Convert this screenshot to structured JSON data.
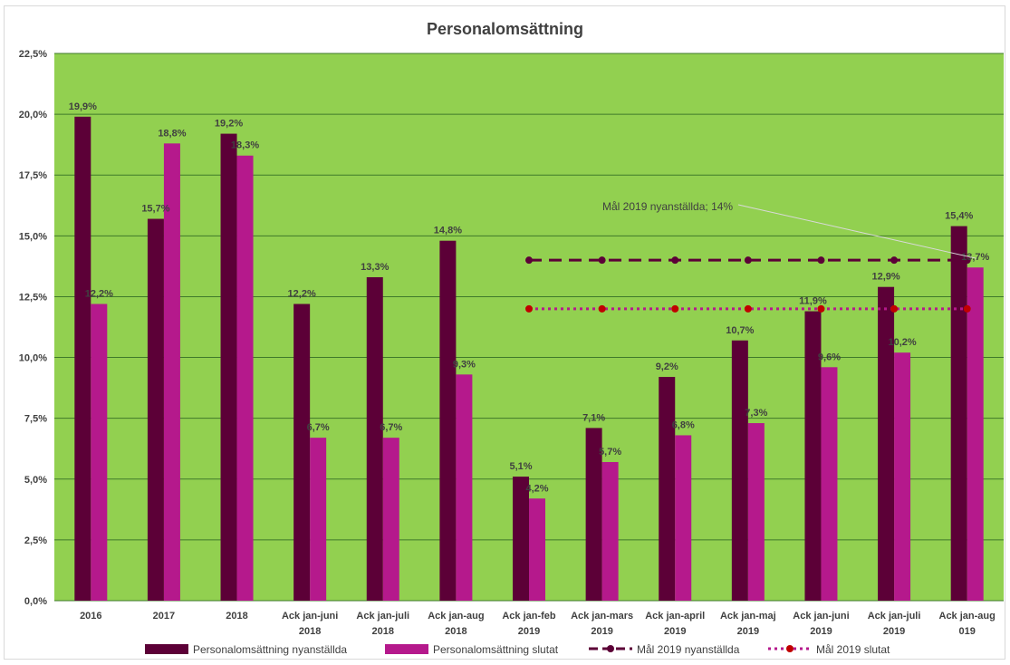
{
  "title": "Personalomsättning",
  "chart_data": {
    "type": "bar",
    "title": "Personalomsättning",
    "xlabel": "",
    "ylabel": "",
    "ylim": [
      0,
      22.5
    ],
    "yticks": [
      "0,0%",
      "2,5%",
      "5,0%",
      "7,5%",
      "10,0%",
      "12,5%",
      "15,0%",
      "17,5%",
      "20,0%",
      "22,5%"
    ],
    "grid": true,
    "legend_position": "bottom",
    "categories": [
      [
        "2016"
      ],
      [
        "2017"
      ],
      [
        "2018"
      ],
      [
        "Ack jan-juni",
        "2018"
      ],
      [
        "Ack jan-juli",
        "2018"
      ],
      [
        "Ack jan-aug",
        "2018"
      ],
      [
        "Ack jan-feb",
        "2019"
      ],
      [
        "Ack jan-mars",
        "2019"
      ],
      [
        "Ack jan-april",
        "2019"
      ],
      [
        "Ack jan-maj",
        "2019"
      ],
      [
        "Ack jan-juni",
        "2019"
      ],
      [
        "Ack jan-juli",
        "2019"
      ],
      [
        "Ack jan-aug",
        "019"
      ]
    ],
    "series": [
      {
        "name": "Personalomsättning nyanställda",
        "kind": "bar",
        "color": "#5c0037",
        "values": [
          19.9,
          15.7,
          19.2,
          12.2,
          13.3,
          14.8,
          5.1,
          7.1,
          9.2,
          10.7,
          11.9,
          12.9,
          15.4
        ],
        "labels": [
          "19,9%",
          "15,7%",
          "19,2%",
          "12,2%",
          "13,3%",
          "14,8%",
          "5,1%",
          "7,1%",
          "9,2%",
          "10,7%",
          "11,9%",
          "12,9%",
          "15,4%"
        ]
      },
      {
        "name": "Personalomsättning slutat",
        "kind": "bar",
        "color": "#b5198c",
        "values": [
          12.2,
          18.8,
          18.3,
          6.7,
          6.7,
          9.3,
          4.2,
          5.7,
          6.8,
          7.3,
          9.6,
          10.2,
          13.7
        ],
        "labels": [
          "12,2%",
          "18,8%",
          "18,3%",
          "6,7%",
          "6,7%",
          "9,3%",
          "4,2%",
          "5,7%",
          "6,8%",
          "7,3%",
          "9,6%",
          "10,2%",
          "13,7%"
        ]
      },
      {
        "name": "Mål 2019 nyanställda",
        "kind": "line",
        "style": "dashed",
        "color": "#5c0037",
        "values": [
          null,
          null,
          null,
          null,
          null,
          null,
          14,
          14,
          14,
          14,
          14,
          14,
          14
        ]
      },
      {
        "name": "Mål 2019 slutat",
        "kind": "line",
        "style": "dotted",
        "color": "#b5198c",
        "marker_color": "#c00000",
        "values": [
          null,
          null,
          null,
          null,
          null,
          null,
          12,
          12,
          12,
          12,
          12,
          12,
          12
        ]
      }
    ],
    "annotation": {
      "text": "Mål 2019 nyanställda; 14%",
      "target_category": 12,
      "target_value": 14
    },
    "plot_background": "#92d050",
    "gridline_color": "#3f7a2a"
  }
}
